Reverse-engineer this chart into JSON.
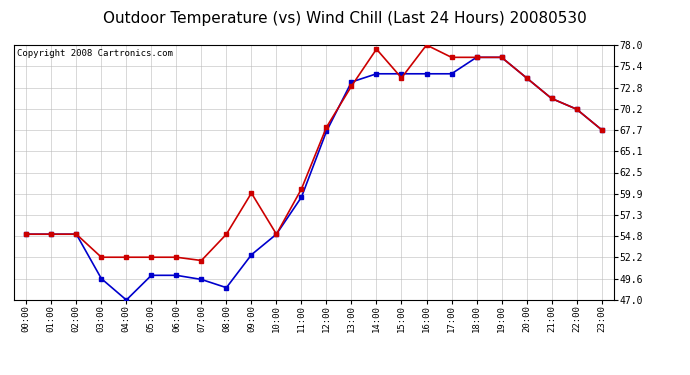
{
  "title": "Outdoor Temperature (vs) Wind Chill (Last 24 Hours) 20080530",
  "copyright": "Copyright 2008 Cartronics.com",
  "hours": [
    "00:00",
    "01:00",
    "02:00",
    "03:00",
    "04:00",
    "05:00",
    "06:00",
    "07:00",
    "08:00",
    "09:00",
    "10:00",
    "11:00",
    "12:00",
    "13:00",
    "14:00",
    "15:00",
    "16:00",
    "17:00",
    "18:00",
    "19:00",
    "20:00",
    "21:00",
    "22:00",
    "23:00"
  ],
  "temp": [
    55.0,
    55.0,
    55.0,
    52.2,
    52.2,
    52.2,
    52.2,
    51.8,
    55.0,
    60.0,
    55.0,
    60.5,
    68.0,
    73.0,
    77.5,
    74.0,
    78.0,
    76.5,
    76.5,
    76.5,
    74.0,
    71.5,
    70.2,
    67.7
  ],
  "windchill": [
    55.0,
    55.0,
    55.0,
    49.6,
    47.0,
    50.0,
    50.0,
    49.5,
    48.5,
    52.5,
    55.0,
    59.5,
    67.5,
    73.5,
    74.5,
    74.5,
    74.5,
    74.5,
    76.5,
    76.5,
    74.0,
    71.5,
    70.2,
    67.7
  ],
  "temp_color": "#cc0000",
  "windchill_color": "#0000cc",
  "bg_color": "#ffffff",
  "grid_color": "#bbbbbb",
  "y_min": 47.0,
  "y_max": 78.0,
  "y_ticks": [
    47.0,
    49.6,
    52.2,
    54.8,
    57.3,
    59.9,
    62.5,
    65.1,
    67.7,
    70.2,
    72.8,
    75.4,
    78.0
  ],
  "title_fontsize": 11,
  "copyright_fontsize": 6.5,
  "marker_size": 3.0,
  "line_width": 1.2
}
